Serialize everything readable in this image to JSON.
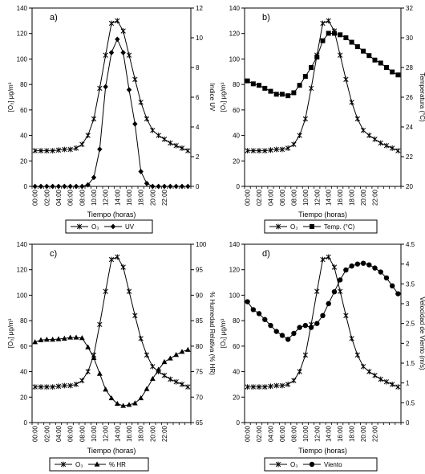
{
  "chart_data": [
    {
      "type": "line",
      "panel_label": "a)",
      "xlabel": "Tiempo (horas)",
      "ylabel": "[O₃] μg/m³",
      "y2label": "Indice UV",
      "x_tick_labels": [
        "00:00",
        "02:00",
        "04:00",
        "06:00",
        "08:00",
        "10:00",
        "12:00",
        "14:00",
        "16:00",
        "18:00",
        "20:00",
        "22:00"
      ],
      "ylim": [
        0,
        140
      ],
      "yticks": [
        0,
        20,
        40,
        60,
        80,
        100,
        120,
        140
      ],
      "y2lim": [
        0,
        12
      ],
      "y2ticks": [
        0,
        2,
        4,
        6,
        8,
        10,
        12
      ],
      "legend": [
        "O₃",
        "UV"
      ],
      "series": [
        {
          "name": "O₃",
          "axis": "left",
          "marker": "star",
          "values": [
            28,
            28,
            28,
            28,
            28.5,
            29,
            29,
            30,
            33,
            40,
            53,
            77,
            103,
            128,
            130,
            122,
            103,
            84,
            66,
            53,
            44,
            40,
            37,
            34,
            32,
            30,
            28
          ]
        },
        {
          "name": "UV",
          "axis": "right",
          "marker": "diamond",
          "values": [
            0,
            0,
            0,
            0,
            0,
            0,
            0,
            0,
            0,
            0.1,
            0.6,
            2.5,
            6.7,
            9,
            9.9,
            9,
            6.5,
            4.2,
            1,
            0.2,
            0,
            0,
            0,
            0,
            0,
            0,
            0
          ]
        }
      ]
    },
    {
      "type": "line",
      "panel_label": "b)",
      "xlabel": "Tiempo (horas)",
      "ylabel": "[O₃] μg/m³",
      "y2label": "Temperatura (°C)",
      "x_tick_labels": [
        "00:00",
        "02:00",
        "04:00",
        "06:00",
        "08:00",
        "10:00",
        "12:00",
        "14:00",
        "16:00",
        "18:00",
        "20:00",
        "22:00"
      ],
      "ylim": [
        0,
        140
      ],
      "yticks": [
        0,
        20,
        40,
        60,
        80,
        100,
        120,
        140
      ],
      "y2lim": [
        20,
        32
      ],
      "y2ticks": [
        20,
        22,
        24,
        26,
        28,
        30,
        32
      ],
      "legend": [
        "O₃",
        "Temp. (°C)"
      ],
      "series": [
        {
          "name": "O₃",
          "axis": "left",
          "marker": "star",
          "values": [
            28,
            28,
            28,
            28,
            28.5,
            29,
            29,
            30,
            33,
            40,
            53,
            77,
            103,
            128,
            130,
            122,
            103,
            84,
            66,
            53,
            44,
            40,
            37,
            34,
            32,
            30,
            28
          ]
        },
        {
          "name": "Temp. (°C)",
          "axis": "right",
          "marker": "square",
          "values": [
            27.1,
            26.9,
            26.8,
            26.6,
            26.4,
            26.2,
            26.2,
            26.1,
            26.3,
            26.8,
            27.4,
            28,
            28.7,
            29.8,
            30.3,
            30.3,
            30.2,
            30,
            29.7,
            29.4,
            29.1,
            28.8,
            28.5,
            28.3,
            28,
            27.7,
            27.5
          ]
        }
      ]
    },
    {
      "type": "line",
      "panel_label": "c)",
      "xlabel": "Tiempo (horas)",
      "ylabel": "[O₃] μg/m³",
      "y2label": "% Humedad Relativa (% HR)",
      "x_tick_labels": [
        "00:00",
        "02:00",
        "04:00",
        "06:00",
        "08:00",
        "10:00",
        "12:00",
        "14:00",
        "16:00",
        "18:00",
        "20:00",
        "22:00"
      ],
      "ylim": [
        0,
        140
      ],
      "yticks": [
        0,
        20,
        40,
        60,
        80,
        100,
        120,
        140
      ],
      "y2lim": [
        65,
        100
      ],
      "y2ticks": [
        65,
        70,
        75,
        80,
        85,
        90,
        95,
        100
      ],
      "legend": [
        "O₃",
        "% HR"
      ],
      "series": [
        {
          "name": "O₃",
          "axis": "left",
          "marker": "star",
          "values": [
            28,
            28,
            28,
            28,
            28.5,
            29,
            29,
            30,
            33,
            40,
            53,
            77,
            103,
            128,
            130,
            122,
            103,
            84,
            66,
            53,
            44,
            40,
            37,
            34,
            32,
            30,
            28
          ]
        },
        {
          "name": "% HR",
          "axis": "right",
          "marker": "triangle",
          "values": [
            80.8,
            81.2,
            81.3,
            81.3,
            81.4,
            81.5,
            81.7,
            81.7,
            81.6,
            79.8,
            77.7,
            74.6,
            71.5,
            69.8,
            68.7,
            68.3,
            68.5,
            68.8,
            69.8,
            71.6,
            73.6,
            75.4,
            76.9,
            77.6,
            78.3,
            78.9,
            79.3
          ]
        }
      ]
    },
    {
      "type": "line",
      "panel_label": "d)",
      "xlabel": "Tiempo (horas)",
      "ylabel": "[O₃] μg/m³",
      "y2label": "Velocidad de Viento (m/s)",
      "x_tick_labels": [
        "00:00",
        "02:00",
        "04:00",
        "06:00",
        "08:00",
        "10:00",
        "12:00",
        "14:00",
        "16:00",
        "18:00",
        "20:00",
        "22:00"
      ],
      "ylim": [
        0,
        140
      ],
      "yticks": [
        0,
        20,
        40,
        60,
        80,
        100,
        120,
        140
      ],
      "y2lim": [
        0,
        4.5
      ],
      "y2ticks": [
        0,
        0.5,
        1,
        1.5,
        2,
        2.5,
        3,
        3.5,
        4,
        4.5
      ],
      "legend": [
        "O₃",
        "Viento"
      ],
      "series": [
        {
          "name": "O₃",
          "axis": "left",
          "marker": "star",
          "values": [
            28,
            28,
            28,
            28,
            28.5,
            29,
            29,
            30,
            33,
            40,
            53,
            77,
            103,
            128,
            130,
            122,
            103,
            84,
            66,
            53,
            44,
            40,
            37,
            34,
            32,
            30,
            28
          ]
        },
        {
          "name": "Viento",
          "axis": "right",
          "marker": "circle",
          "values": [
            3.05,
            2.85,
            2.75,
            2.6,
            2.45,
            2.3,
            2.2,
            2.1,
            2.25,
            2.4,
            2.45,
            2.4,
            2.5,
            2.7,
            3.0,
            3.3,
            3.6,
            3.85,
            3.95,
            4.0,
            4.02,
            3.98,
            3.9,
            3.8,
            3.65,
            3.45,
            3.25
          ]
        }
      ]
    }
  ]
}
